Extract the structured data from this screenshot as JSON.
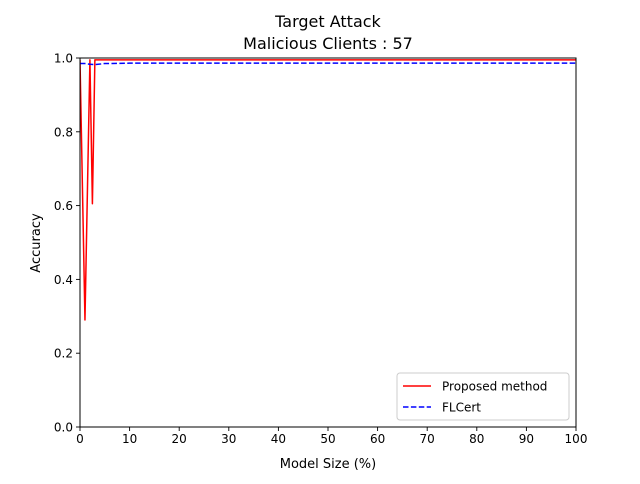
{
  "chart_data": {
    "type": "line",
    "title_line1": "Target Attack",
    "title_line2": "Malicious Clients : 57",
    "xlabel": "Model Size (%)",
    "ylabel": "Accuracy",
    "xlim": [
      0,
      100
    ],
    "ylim": [
      0,
      1.0
    ],
    "xticks": [
      0,
      10,
      20,
      30,
      40,
      50,
      60,
      70,
      80,
      90,
      100
    ],
    "yticks": [
      0.0,
      0.2,
      0.4,
      0.6,
      0.8,
      1.0
    ],
    "xtick_labels": [
      "0",
      "10",
      "20",
      "30",
      "40",
      "50",
      "60",
      "70",
      "80",
      "90",
      "100"
    ],
    "ytick_labels": [
      "0.0",
      "0.2",
      "0.4",
      "0.6",
      "0.8",
      "1.0"
    ],
    "grid": false,
    "legend_position": "lower-right",
    "series": [
      {
        "name": "Proposed method",
        "color": "#ff0000",
        "style": "solid",
        "x": [
          0,
          1,
          2,
          2.5,
          3,
          5,
          10,
          20,
          30,
          40,
          50,
          60,
          70,
          80,
          90,
          100
        ],
        "y": [
          0.995,
          0.29,
          0.995,
          0.605,
          0.995,
          0.995,
          0.995,
          0.995,
          0.995,
          0.995,
          0.995,
          0.995,
          0.995,
          0.995,
          0.995,
          0.995
        ]
      },
      {
        "name": "FLCert",
        "color": "#0000ff",
        "style": "dashed",
        "x": [
          0,
          1,
          2,
          3,
          5,
          10,
          20,
          30,
          40,
          50,
          60,
          70,
          80,
          90,
          100
        ],
        "y": [
          0.985,
          0.985,
          0.983,
          0.982,
          0.985,
          0.986,
          0.986,
          0.986,
          0.986,
          0.986,
          0.986,
          0.986,
          0.986,
          0.986,
          0.986
        ]
      }
    ]
  }
}
